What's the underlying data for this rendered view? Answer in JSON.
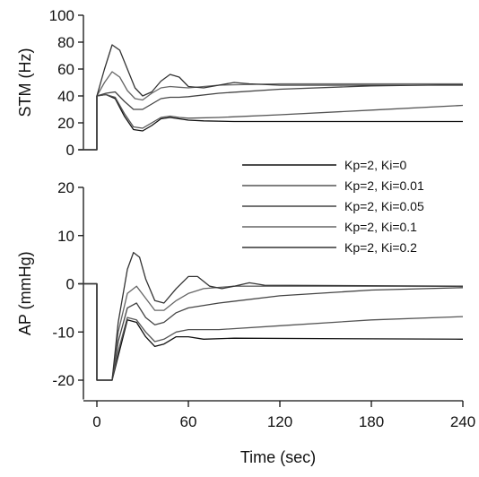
{
  "chart_data": [
    {
      "type": "line",
      "panel": "top",
      "ylabel": "STM (Hz)",
      "xlabel": "",
      "xlim": [
        -12,
        240
      ],
      "ylim": [
        0,
        100
      ],
      "yticks": [
        0,
        20,
        40,
        60,
        80,
        100
      ],
      "grid": false,
      "series": [
        {
          "name": "Kp=2, Ki=0",
          "color": "#111111",
          "points": [
            [
              -12,
              0
            ],
            [
              0,
              0
            ],
            [
              0,
              40
            ],
            [
              6,
              41
            ],
            [
              12,
              38
            ],
            [
              18,
              25
            ],
            [
              24,
              15
            ],
            [
              30,
              14
            ],
            [
              36,
              18
            ],
            [
              42,
              23
            ],
            [
              48,
              24
            ],
            [
              54,
              23
            ],
            [
              60,
              22
            ],
            [
              70,
              21.5
            ],
            [
              90,
              21
            ],
            [
              150,
              21
            ],
            [
              240,
              21
            ]
          ]
        },
        {
          "name": "Kp=2, Ki=0.01",
          "color": "#555555",
          "points": [
            [
              -12,
              0
            ],
            [
              0,
              0
            ],
            [
              0,
              40
            ],
            [
              6,
              41
            ],
            [
              12,
              39
            ],
            [
              18,
              27
            ],
            [
              24,
              17
            ],
            [
              30,
              16
            ],
            [
              36,
              20
            ],
            [
              42,
              24
            ],
            [
              48,
              25
            ],
            [
              54,
              24
            ],
            [
              60,
              23.5
            ],
            [
              80,
              24
            ],
            [
              120,
              26
            ],
            [
              180,
              29.5
            ],
            [
              240,
              33
            ]
          ]
        },
        {
          "name": "Kp=2, Ki=0.05",
          "color": "#444444",
          "points": [
            [
              -12,
              0
            ],
            [
              0,
              0
            ],
            [
              0,
              40
            ],
            [
              6,
              42
            ],
            [
              12,
              43
            ],
            [
              18,
              36
            ],
            [
              24,
              30
            ],
            [
              30,
              30
            ],
            [
              36,
              34
            ],
            [
              42,
              38
            ],
            [
              48,
              39
            ],
            [
              54,
              39
            ],
            [
              60,
              39.5
            ],
            [
              80,
              42
            ],
            [
              120,
              45
            ],
            [
              180,
              47.5
            ],
            [
              240,
              48.5
            ]
          ]
        },
        {
          "name": "Kp=2, Ki=0.1",
          "color": "#666666",
          "points": [
            [
              -12,
              0
            ],
            [
              0,
              0
            ],
            [
              0,
              40
            ],
            [
              5,
              50
            ],
            [
              10,
              58
            ],
            [
              15,
              54
            ],
            [
              20,
              44
            ],
            [
              25,
              38
            ],
            [
              30,
              37
            ],
            [
              36,
              42
            ],
            [
              42,
              46
            ],
            [
              48,
              47
            ],
            [
              54,
              46.5
            ],
            [
              60,
              46
            ],
            [
              80,
              48
            ],
            [
              120,
              49
            ],
            [
              240,
              49
            ]
          ]
        },
        {
          "name": "Kp=2, Ki=0.2",
          "color": "#333333",
          "points": [
            [
              -12,
              0
            ],
            [
              0,
              0
            ],
            [
              0,
              40
            ],
            [
              5,
              60
            ],
            [
              10,
              78
            ],
            [
              15,
              74
            ],
            [
              20,
              60
            ],
            [
              25,
              46
            ],
            [
              30,
              40
            ],
            [
              36,
              43
            ],
            [
              42,
              51
            ],
            [
              48,
              56
            ],
            [
              54,
              54
            ],
            [
              60,
              47
            ],
            [
              70,
              46
            ],
            [
              80,
              48
            ],
            [
              90,
              50
            ],
            [
              100,
              49
            ],
            [
              120,
              48
            ],
            [
              240,
              48
            ]
          ]
        }
      ]
    },
    {
      "type": "line",
      "panel": "bottom",
      "ylabel": "AP (mmHg)",
      "xlabel": "Time (sec)",
      "xlim": [
        -12,
        240
      ],
      "ylim": [
        -24,
        20
      ],
      "yticks": [
        -20,
        -10,
        0,
        10,
        20
      ],
      "xticks": [
        0,
        60,
        120,
        180,
        240
      ],
      "grid": false,
      "legend_position": "center-right",
      "series": [
        {
          "name": "Kp=2, Ki=0",
          "color": "#111111",
          "points": [
            [
              -12,
              0
            ],
            [
              0,
              0
            ],
            [
              0,
              -20
            ],
            [
              10,
              -20
            ],
            [
              14,
              -15
            ],
            [
              20,
              -7.5
            ],
            [
              26,
              -8
            ],
            [
              32,
              -11
            ],
            [
              38,
              -13
            ],
            [
              44,
              -12.5
            ],
            [
              52,
              -11
            ],
            [
              60,
              -11
            ],
            [
              70,
              -11.5
            ],
            [
              90,
              -11.3
            ],
            [
              240,
              -11.5
            ]
          ]
        },
        {
          "name": "Kp=2, Ki=0.01",
          "color": "#555555",
          "points": [
            [
              -12,
              0
            ],
            [
              0,
              0
            ],
            [
              0,
              -20
            ],
            [
              10,
              -20
            ],
            [
              14,
              -14
            ],
            [
              20,
              -7
            ],
            [
              26,
              -7.5
            ],
            [
              32,
              -10
            ],
            [
              38,
              -12
            ],
            [
              44,
              -11.5
            ],
            [
              52,
              -10
            ],
            [
              60,
              -9.5
            ],
            [
              80,
              -9.5
            ],
            [
              120,
              -8.7
            ],
            [
              180,
              -7.5
            ],
            [
              240,
              -6.8
            ]
          ]
        },
        {
          "name": "Kp=2, Ki=0.05",
          "color": "#444444",
          "points": [
            [
              -12,
              0
            ],
            [
              0,
              0
            ],
            [
              0,
              -20
            ],
            [
              10,
              -20
            ],
            [
              14,
              -12
            ],
            [
              20,
              -5
            ],
            [
              26,
              -4
            ],
            [
              32,
              -7
            ],
            [
              38,
              -8.5
            ],
            [
              44,
              -8
            ],
            [
              52,
              -6
            ],
            [
              60,
              -5
            ],
            [
              80,
              -4
            ],
            [
              120,
              -2.5
            ],
            [
              180,
              -1.3
            ],
            [
              240,
              -0.8
            ]
          ]
        },
        {
          "name": "Kp=2, Ki=0.1",
          "color": "#666666",
          "points": [
            [
              -12,
              0
            ],
            [
              0,
              0
            ],
            [
              0,
              -20
            ],
            [
              10,
              -20
            ],
            [
              14,
              -10
            ],
            [
              20,
              -2
            ],
            [
              26,
              -0.5
            ],
            [
              32,
              -3
            ],
            [
              38,
              -5.5
            ],
            [
              44,
              -5.5
            ],
            [
              52,
              -3.5
            ],
            [
              60,
              -2
            ],
            [
              70,
              -1
            ],
            [
              90,
              -0.5
            ],
            [
              240,
              -0.5
            ]
          ]
        },
        {
          "name": "Kp=2, Ki=0.2",
          "color": "#333333",
          "points": [
            [
              -12,
              0
            ],
            [
              0,
              0
            ],
            [
              0,
              -20
            ],
            [
              10,
              -20
            ],
            [
              14,
              -8
            ],
            [
              20,
              3
            ],
            [
              24,
              6.5
            ],
            [
              28,
              5.5
            ],
            [
              32,
              1
            ],
            [
              38,
              -3.5
            ],
            [
              44,
              -4
            ],
            [
              52,
              -1
            ],
            [
              60,
              1.5
            ],
            [
              66,
              1.5
            ],
            [
              74,
              -0.5
            ],
            [
              82,
              -1
            ],
            [
              90,
              -0.5
            ],
            [
              100,
              0.2
            ],
            [
              110,
              -0.3
            ],
            [
              240,
              -0.5
            ]
          ]
        }
      ]
    }
  ]
}
